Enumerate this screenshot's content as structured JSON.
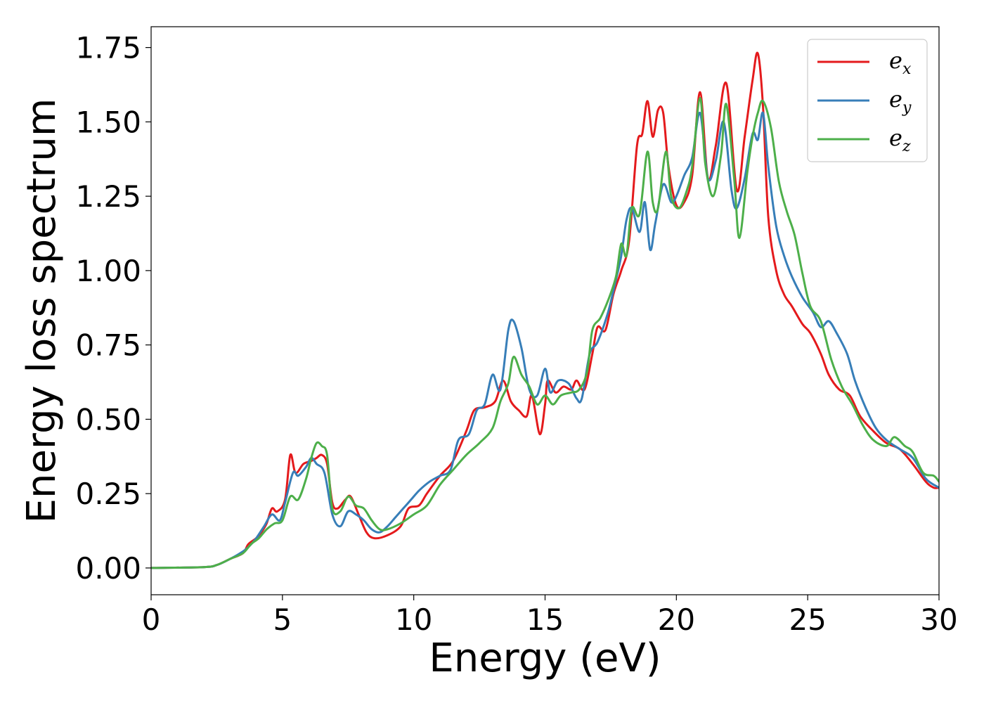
{
  "chart_data": {
    "type": "line",
    "title": "",
    "xlabel": "Energy (eV)",
    "ylabel": "Energy loss spectrum",
    "xlim": [
      0,
      30
    ],
    "ylim": [
      -0.09,
      1.82
    ],
    "xticks": [
      0,
      5,
      10,
      15,
      20,
      25,
      30
    ],
    "xtick_labels": [
      "0",
      "5",
      "10",
      "15",
      "20",
      "25",
      "30"
    ],
    "yticks": [
      0,
      0.25,
      0.5,
      0.75,
      1.0,
      1.25,
      1.5,
      1.75
    ],
    "ytick_labels": [
      "0.00",
      "0.25",
      "0.50",
      "0.75",
      "1.00",
      "1.25",
      "1.50",
      "1.75"
    ],
    "grid": false,
    "legend_position": "top-right",
    "series": [
      {
        "name": "e_x",
        "label_base": "e",
        "label_sub": "x",
        "color": "#e41a1c",
        "points": [
          [
            0,
            0
          ],
          [
            2,
            0.003
          ],
          [
            2.5,
            0.01
          ],
          [
            3,
            0.03
          ],
          [
            3.5,
            0.05
          ],
          [
            3.7,
            0.08
          ],
          [
            4,
            0.1
          ],
          [
            4.2,
            0.12
          ],
          [
            4.4,
            0.15
          ],
          [
            4.6,
            0.2
          ],
          [
            4.8,
            0.19
          ],
          [
            5.1,
            0.23
          ],
          [
            5.3,
            0.38
          ],
          [
            5.5,
            0.32
          ],
          [
            5.8,
            0.35
          ],
          [
            6.1,
            0.36
          ],
          [
            6.3,
            0.37
          ],
          [
            6.5,
            0.38
          ],
          [
            6.7,
            0.35
          ],
          [
            6.9,
            0.22
          ],
          [
            7.1,
            0.2
          ],
          [
            7.4,
            0.23
          ],
          [
            7.6,
            0.24
          ],
          [
            7.9,
            0.18
          ],
          [
            8.2,
            0.12
          ],
          [
            8.5,
            0.1
          ],
          [
            9,
            0.11
          ],
          [
            9.5,
            0.14
          ],
          [
            9.8,
            0.2
          ],
          [
            10.2,
            0.21
          ],
          [
            10.5,
            0.25
          ],
          [
            11,
            0.31
          ],
          [
            11.5,
            0.36
          ],
          [
            12,
            0.46
          ],
          [
            12.3,
            0.53
          ],
          [
            12.7,
            0.54
          ],
          [
            13.1,
            0.56
          ],
          [
            13.4,
            0.63
          ],
          [
            13.7,
            0.56
          ],
          [
            14,
            0.53
          ],
          [
            14.3,
            0.51
          ],
          [
            14.5,
            0.58
          ],
          [
            14.8,
            0.45
          ],
          [
            15,
            0.55
          ],
          [
            15.1,
            0.63
          ],
          [
            15.4,
            0.59
          ],
          [
            15.7,
            0.61
          ],
          [
            16,
            0.6
          ],
          [
            16.2,
            0.63
          ],
          [
            16.5,
            0.6
          ],
          [
            16.8,
            0.72
          ],
          [
            17,
            0.81
          ],
          [
            17.3,
            0.8
          ],
          [
            17.6,
            0.92
          ],
          [
            17.9,
            1.0
          ],
          [
            18.2,
            1.1
          ],
          [
            18.5,
            1.42
          ],
          [
            18.7,
            1.46
          ],
          [
            18.9,
            1.57
          ],
          [
            19.1,
            1.45
          ],
          [
            19.3,
            1.54
          ],
          [
            19.5,
            1.53
          ],
          [
            19.7,
            1.35
          ],
          [
            20,
            1.22
          ],
          [
            20.3,
            1.23
          ],
          [
            20.6,
            1.32
          ],
          [
            20.9,
            1.6
          ],
          [
            21.2,
            1.31
          ],
          [
            21.5,
            1.42
          ],
          [
            21.9,
            1.63
          ],
          [
            22.3,
            1.27
          ],
          [
            22.6,
            1.45
          ],
          [
            22.9,
            1.64
          ],
          [
            23.1,
            1.73
          ],
          [
            23.3,
            1.55
          ],
          [
            23.5,
            1.18
          ],
          [
            23.8,
            1.0
          ],
          [
            24.1,
            0.92
          ],
          [
            24.4,
            0.88
          ],
          [
            24.8,
            0.82
          ],
          [
            25.1,
            0.79
          ],
          [
            25.5,
            0.72
          ],
          [
            25.8,
            0.65
          ],
          [
            26.2,
            0.6
          ],
          [
            26.6,
            0.58
          ],
          [
            27,
            0.51
          ],
          [
            27.5,
            0.46
          ],
          [
            28,
            0.42
          ],
          [
            28.5,
            0.4
          ],
          [
            29,
            0.35
          ],
          [
            29.5,
            0.29
          ],
          [
            29.8,
            0.27
          ],
          [
            30,
            0.27
          ]
        ]
      },
      {
        "name": "e_y",
        "label_base": "e",
        "label_sub": "y",
        "color": "#377eb8",
        "points": [
          [
            0,
            0
          ],
          [
            2,
            0.003
          ],
          [
            2.5,
            0.01
          ],
          [
            3,
            0.03
          ],
          [
            3.4,
            0.05
          ],
          [
            3.7,
            0.07
          ],
          [
            4,
            0.1
          ],
          [
            4.3,
            0.14
          ],
          [
            4.6,
            0.18
          ],
          [
            4.9,
            0.16
          ],
          [
            5.1,
            0.22
          ],
          [
            5.4,
            0.32
          ],
          [
            5.6,
            0.31
          ],
          [
            5.9,
            0.34
          ],
          [
            6.1,
            0.37
          ],
          [
            6.3,
            0.35
          ],
          [
            6.6,
            0.32
          ],
          [
            6.9,
            0.18
          ],
          [
            7.2,
            0.14
          ],
          [
            7.5,
            0.19
          ],
          [
            7.8,
            0.18
          ],
          [
            8.1,
            0.16
          ],
          [
            8.4,
            0.13
          ],
          [
            8.7,
            0.12
          ],
          [
            9,
            0.14
          ],
          [
            9.3,
            0.17
          ],
          [
            9.6,
            0.2
          ],
          [
            9.9,
            0.23
          ],
          [
            10.2,
            0.26
          ],
          [
            10.6,
            0.29
          ],
          [
            11,
            0.31
          ],
          [
            11.4,
            0.33
          ],
          [
            11.7,
            0.43
          ],
          [
            12.1,
            0.45
          ],
          [
            12.4,
            0.53
          ],
          [
            12.7,
            0.55
          ],
          [
            13,
            0.65
          ],
          [
            13.3,
            0.6
          ],
          [
            13.6,
            0.8
          ],
          [
            13.8,
            0.83
          ],
          [
            14.1,
            0.74
          ],
          [
            14.4,
            0.6
          ],
          [
            14.7,
            0.58
          ],
          [
            15,
            0.67
          ],
          [
            15.2,
            0.59
          ],
          [
            15.5,
            0.63
          ],
          [
            15.9,
            0.62
          ],
          [
            16.2,
            0.57
          ],
          [
            16.4,
            0.57
          ],
          [
            16.7,
            0.72
          ],
          [
            17,
            0.76
          ],
          [
            17.4,
            0.86
          ],
          [
            17.7,
            0.97
          ],
          [
            17.9,
            1.05
          ],
          [
            18.1,
            1.17
          ],
          [
            18.3,
            1.21
          ],
          [
            18.6,
            1.13
          ],
          [
            18.8,
            1.23
          ],
          [
            19,
            1.07
          ],
          [
            19.2,
            1.16
          ],
          [
            19.5,
            1.29
          ],
          [
            19.8,
            1.23
          ],
          [
            20,
            1.25
          ],
          [
            20.3,
            1.32
          ],
          [
            20.6,
            1.38
          ],
          [
            20.9,
            1.53
          ],
          [
            21.2,
            1.31
          ],
          [
            21.5,
            1.37
          ],
          [
            21.8,
            1.5
          ],
          [
            22.1,
            1.27
          ],
          [
            22.3,
            1.21
          ],
          [
            22.6,
            1.31
          ],
          [
            22.9,
            1.46
          ],
          [
            23.1,
            1.44
          ],
          [
            23.3,
            1.53
          ],
          [
            23.5,
            1.35
          ],
          [
            23.8,
            1.15
          ],
          [
            24.1,
            1.05
          ],
          [
            24.4,
            0.98
          ],
          [
            24.8,
            0.91
          ],
          [
            25.2,
            0.86
          ],
          [
            25.5,
            0.81
          ],
          [
            25.8,
            0.83
          ],
          [
            26.1,
            0.79
          ],
          [
            26.5,
            0.72
          ],
          [
            26.8,
            0.63
          ],
          [
            27.2,
            0.54
          ],
          [
            27.6,
            0.47
          ],
          [
            28,
            0.43
          ],
          [
            28.5,
            0.4
          ],
          [
            29,
            0.37
          ],
          [
            29.5,
            0.3
          ],
          [
            30,
            0.27
          ]
        ]
      },
      {
        "name": "e_z",
        "label_base": "e",
        "label_sub": "z",
        "color": "#4daf4a",
        "points": [
          [
            0,
            0
          ],
          [
            2,
            0.003
          ],
          [
            2.5,
            0.01
          ],
          [
            3,
            0.03
          ],
          [
            3.5,
            0.05
          ],
          [
            3.8,
            0.08
          ],
          [
            4.1,
            0.1
          ],
          [
            4.4,
            0.13
          ],
          [
            4.7,
            0.15
          ],
          [
            5,
            0.16
          ],
          [
            5.3,
            0.24
          ],
          [
            5.6,
            0.23
          ],
          [
            5.9,
            0.3
          ],
          [
            6.1,
            0.37
          ],
          [
            6.3,
            0.42
          ],
          [
            6.5,
            0.41
          ],
          [
            6.7,
            0.38
          ],
          [
            6.9,
            0.2
          ],
          [
            7.2,
            0.19
          ],
          [
            7.5,
            0.24
          ],
          [
            7.8,
            0.21
          ],
          [
            8.1,
            0.2
          ],
          [
            8.4,
            0.16
          ],
          [
            8.7,
            0.13
          ],
          [
            9,
            0.13
          ],
          [
            9.5,
            0.15
          ],
          [
            10,
            0.18
          ],
          [
            10.5,
            0.21
          ],
          [
            11,
            0.28
          ],
          [
            11.5,
            0.33
          ],
          [
            12,
            0.38
          ],
          [
            12.5,
            0.42
          ],
          [
            13,
            0.47
          ],
          [
            13.3,
            0.56
          ],
          [
            13.6,
            0.62
          ],
          [
            13.8,
            0.71
          ],
          [
            14.1,
            0.65
          ],
          [
            14.4,
            0.61
          ],
          [
            14.7,
            0.55
          ],
          [
            15,
            0.58
          ],
          [
            15.3,
            0.55
          ],
          [
            15.6,
            0.58
          ],
          [
            16,
            0.59
          ],
          [
            16.3,
            0.6
          ],
          [
            16.6,
            0.66
          ],
          [
            16.8,
            0.8
          ],
          [
            17.1,
            0.84
          ],
          [
            17.4,
            0.9
          ],
          [
            17.7,
            0.98
          ],
          [
            17.9,
            1.09
          ],
          [
            18.1,
            1.05
          ],
          [
            18.3,
            1.21
          ],
          [
            18.6,
            1.19
          ],
          [
            18.9,
            1.4
          ],
          [
            19.1,
            1.23
          ],
          [
            19.3,
            1.21
          ],
          [
            19.6,
            1.4
          ],
          [
            19.8,
            1.25
          ],
          [
            20.1,
            1.21
          ],
          [
            20.4,
            1.27
          ],
          [
            20.6,
            1.35
          ],
          [
            20.9,
            1.58
          ],
          [
            21.1,
            1.36
          ],
          [
            21.4,
            1.25
          ],
          [
            21.7,
            1.39
          ],
          [
            21.9,
            1.56
          ],
          [
            22.2,
            1.31
          ],
          [
            22.4,
            1.11
          ],
          [
            22.7,
            1.33
          ],
          [
            22.9,
            1.45
          ],
          [
            23.1,
            1.53
          ],
          [
            23.3,
            1.57
          ],
          [
            23.6,
            1.48
          ],
          [
            23.9,
            1.3
          ],
          [
            24.2,
            1.2
          ],
          [
            24.5,
            1.12
          ],
          [
            24.8,
            0.99
          ],
          [
            25.1,
            0.88
          ],
          [
            25.5,
            0.83
          ],
          [
            25.9,
            0.7
          ],
          [
            26.3,
            0.61
          ],
          [
            26.7,
            0.55
          ],
          [
            27.1,
            0.48
          ],
          [
            27.5,
            0.43
          ],
          [
            28,
            0.41
          ],
          [
            28.3,
            0.44
          ],
          [
            28.7,
            0.41
          ],
          [
            29,
            0.39
          ],
          [
            29.4,
            0.32
          ],
          [
            29.8,
            0.31
          ],
          [
            30,
            0.29
          ]
        ]
      }
    ]
  }
}
